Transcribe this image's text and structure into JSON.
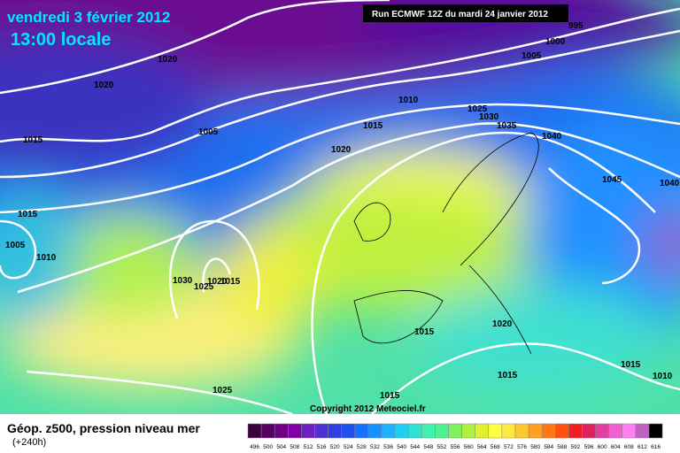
{
  "header": {
    "date": "vendredi 3 février 2012",
    "time": "13:00 locale",
    "run": "Run ECMWF 12Z du mardi 24 janvier 2012"
  },
  "isobar_labels": [
    "1020",
    "1020",
    "1015",
    "1005",
    "1010",
    "1015",
    "1020",
    "1025",
    "1030",
    "1035",
    "1040",
    "1045",
    "1040",
    "1000",
    "995",
    "1005",
    "1015",
    "1005",
    "1010",
    "1030",
    "1025",
    "1020",
    "1015",
    "1015",
    "1020",
    "1015",
    "1015",
    "1025",
    "1015",
    "1010"
  ],
  "copyright": "Copyright 2012 Meteociel.fr",
  "legend": {
    "title": "Géop. z500, pression niveau mer",
    "subtitle": "(+240h)",
    "values": [
      496,
      500,
      504,
      508,
      512,
      516,
      520,
      524,
      528,
      532,
      536,
      540,
      544,
      548,
      552,
      556,
      560,
      564,
      568,
      572,
      576,
      580,
      584,
      588,
      592,
      596,
      600,
      604,
      608,
      612,
      616
    ],
    "colors": [
      "#3a0040",
      "#560066",
      "#6e0088",
      "#8000a8",
      "#7020c0",
      "#5030d0",
      "#3040e0",
      "#2050f0",
      "#1870ff",
      "#1890ff",
      "#20b0ff",
      "#20d0f0",
      "#30e0d0",
      "#40f0b0",
      "#50f090",
      "#80f060",
      "#b0f040",
      "#e0f030",
      "#ffff40",
      "#ffe840",
      "#ffc830",
      "#ffa020",
      "#ff7818",
      "#ff5010",
      "#f02020",
      "#e02060",
      "#e040a0",
      "#f060d0",
      "#ff80f0",
      "#c060c0",
      "#000000"
    ]
  }
}
